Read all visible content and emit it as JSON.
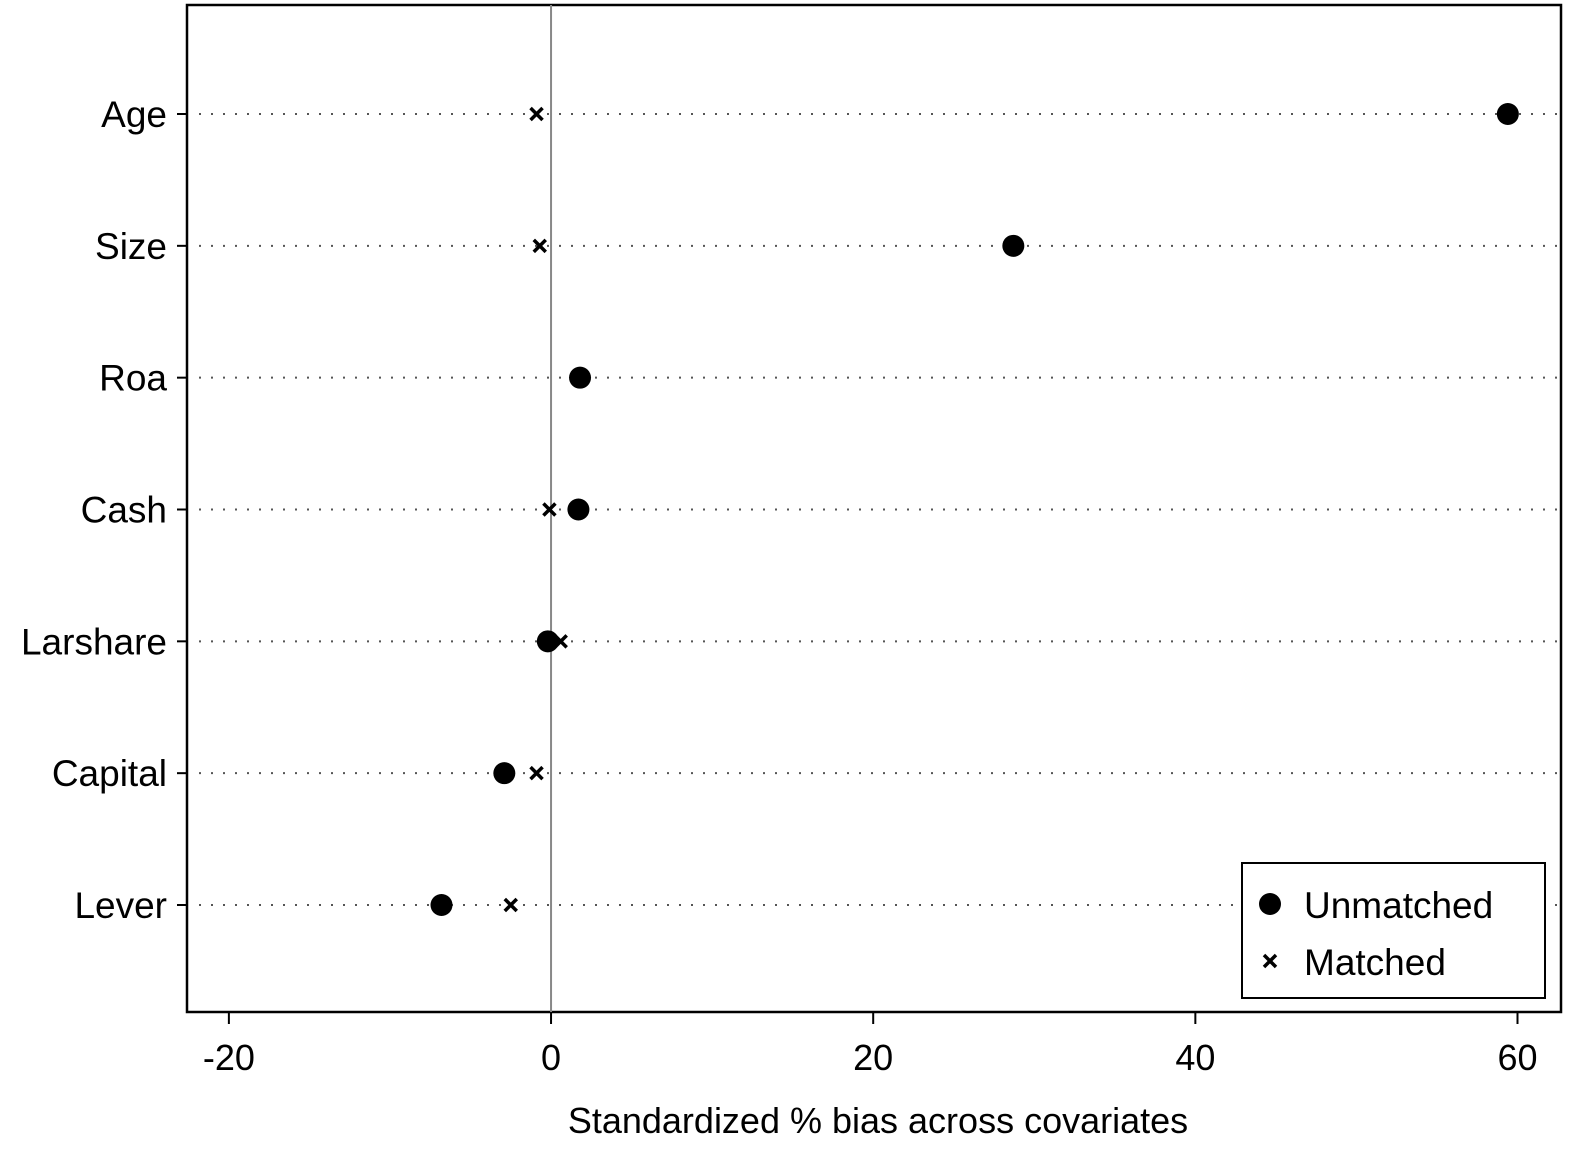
{
  "chart_data": {
    "type": "dot",
    "xlabel": "Standardized % bias across covariates",
    "categories": [
      "Age",
      "Size",
      "Roa",
      "Cash",
      "Larshare",
      "Capital",
      "Lever"
    ],
    "series": [
      {
        "name": "Unmatched",
        "color": "#000000",
        "marker": "circle",
        "values": [
          59.4,
          28.7,
          1.8,
          1.7,
          -0.2,
          -2.9,
          -6.8
        ]
      },
      {
        "name": "Matched",
        "color": "#000000",
        "marker": "x",
        "values": [
          -0.9,
          -0.7,
          1.7,
          -0.1,
          0.6,
          -0.9,
          -2.5
        ]
      }
    ],
    "xlim": [
      -22.6,
      62.7
    ],
    "xticks": [
      -20,
      0,
      20,
      40,
      60
    ],
    "legend": "lower right",
    "grid": true
  }
}
